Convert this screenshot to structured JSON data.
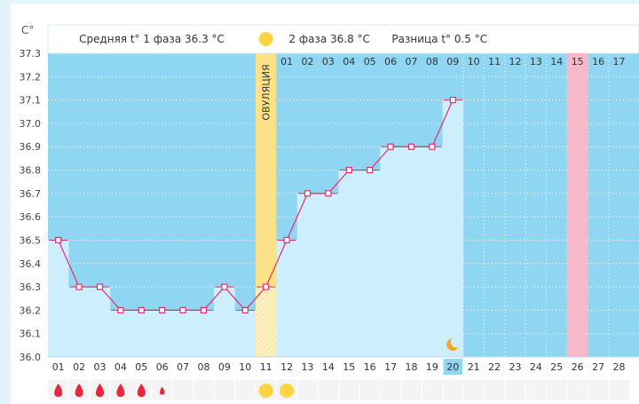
{
  "chart_data": {
    "type": "line",
    "unit_label": "C°",
    "y_ticks": [
      "37.3",
      "37.2",
      "37.1",
      "37.0",
      "36.9",
      "36.8",
      "36.7",
      "36.6",
      "36.5",
      "36.4",
      "36.3",
      "36.2",
      "36.1",
      "36.0"
    ],
    "ylim": [
      36.0,
      37.3
    ],
    "x_cycle_days": [
      "01",
      "02",
      "03",
      "04",
      "05",
      "06",
      "07",
      "08",
      "09",
      "10",
      "11",
      "12",
      "13",
      "14",
      "15",
      "16",
      "17",
      "18",
      "19",
      "20",
      "21",
      "22",
      "23",
      "24",
      "25",
      "26",
      "27",
      "28"
    ],
    "phase2_days": [
      "01",
      "02",
      "03",
      "04",
      "05",
      "06",
      "07",
      "08",
      "09",
      "10",
      "11",
      "12",
      "13",
      "14",
      "15",
      "16",
      "17"
    ],
    "series": [
      {
        "values": [
          36.5,
          36.3,
          36.3,
          36.2,
          36.2,
          36.2,
          36.2,
          36.2,
          36.3,
          36.2,
          36.3,
          36.5,
          36.7,
          36.7,
          36.8,
          36.8,
          36.9,
          36.9,
          36.9,
          37.1
        ]
      }
    ],
    "phase1_label": "Средняя t° 1 фаза 36.3 °C",
    "phase2_label": "2 фаза 36.8 °C",
    "difference_label": "Разница t° 0.5 °C",
    "ovulation_label": "ОВУЛЯЦИЯ",
    "ovulation_day_index": 10,
    "today_day_index": 19,
    "expected_period_day_index": 25,
    "period_days": [
      {
        "day_index": 0,
        "size": "large"
      },
      {
        "day_index": 1,
        "size": "large"
      },
      {
        "day_index": 2,
        "size": "large"
      },
      {
        "day_index": 3,
        "size": "large"
      },
      {
        "day_index": 4,
        "size": "large"
      },
      {
        "day_index": 5,
        "size": "small"
      }
    ],
    "ovulation_marker_days": [
      10,
      11
    ],
    "colors": {
      "future_background": "#8fd6f2",
      "bar_fill": "#cdeefc",
      "ovulation_band": "#fbe286",
      "expected_period_band": "#f7b8c8",
      "line": "#e0306a",
      "marker_fill": "#ffffff",
      "drop": "#e8273f",
      "sun": "#fbd43f",
      "moon": "#f5a623",
      "today_highlight": "#8fd6f2",
      "grid": "#ffffff"
    },
    "grid": true,
    "icons": [
      "blood-drop-icon",
      "sun-icon",
      "moon-icon"
    ]
  }
}
